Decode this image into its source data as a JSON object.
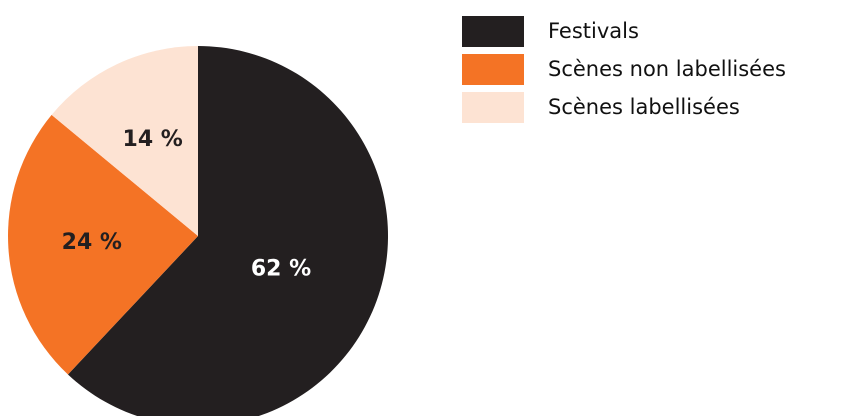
{
  "chart_data": {
    "type": "pie",
    "title": "",
    "slices": [
      {
        "label": "Festivals",
        "value": 62,
        "display": "62 %",
        "color": "#231f20",
        "label_color": "#ffffff"
      },
      {
        "label": "Scènes non labellisées",
        "value": 24,
        "display": "24 %",
        "color": "#f47325",
        "label_color": "#231f20"
      },
      {
        "label": "Scènes labellisées",
        "value": 14,
        "display": "14 %",
        "color": "#fde3d3",
        "label_color": "#231f20"
      }
    ],
    "legend": {
      "placement": "top-right",
      "items": [
        "Festivals",
        "Scènes non labellisées",
        "Scènes labellisées"
      ]
    }
  }
}
